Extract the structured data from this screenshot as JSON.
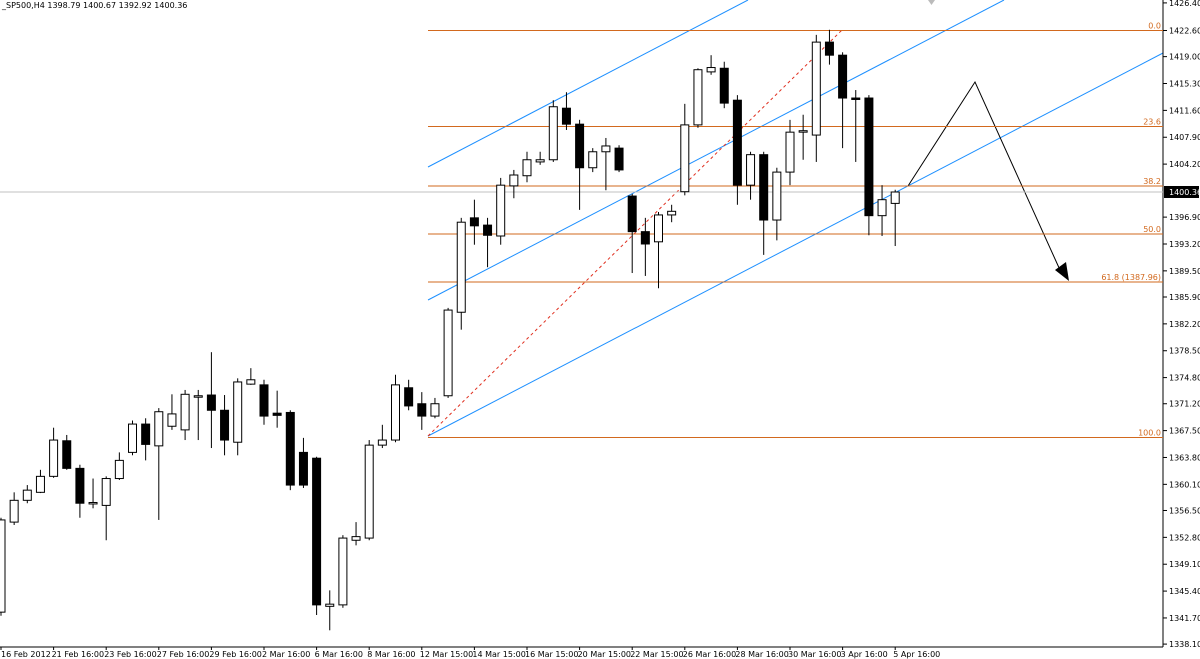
{
  "chart_data": {
    "type": "candlestick",
    "title": "_SP500,H4",
    "ohlc": [
      1398.79,
      1400.67,
      1392.92,
      1400.36
    ],
    "categories": [
      "16 Feb 2012",
      null,
      null,
      null,
      "21 Feb 16:00",
      null,
      null,
      null,
      "23 Feb 16:00",
      null,
      null,
      null,
      "27 Feb 16:00",
      null,
      null,
      null,
      "29 Feb 16:00",
      null,
      null,
      null,
      "2 Mar 16:00",
      null,
      null,
      null,
      "6 Mar 16:00",
      null,
      null,
      null,
      "8 Mar 16:00",
      null,
      null,
      null,
      "12 Mar 15:00",
      null,
      null,
      null,
      "14 Mar 15:00",
      null,
      null,
      null,
      "16 Mar 15:00",
      null,
      null,
      null,
      "20 Mar 15:00",
      null,
      null,
      null,
      "22 Mar 15:00",
      null,
      null,
      null,
      "26 Mar 16:00",
      null,
      null,
      null,
      "28 Mar 16:00",
      null,
      null,
      null,
      "30 Mar 16:00",
      null,
      null,
      null,
      "3 Apr 16:00",
      null,
      null,
      null,
      "5 Apr 16:00"
    ],
    "open": [
      1342.5,
      1354.9,
      1357.9,
      1359.0,
      1361.2,
      1366.1,
      1362.3,
      1357.4,
      1357.2,
      1360.9,
      1364.5,
      1368.4,
      1365.4,
      1368.1,
      1367.6,
      1372.1,
      1372.4,
      1370.3,
      1365.9,
      1373.9,
      1373.8,
      1369.9,
      1370.0,
      1364.5,
      1363.7,
      1343.3,
      1343.5,
      1352.4,
      1352.7,
      1365.5,
      1366.2,
      1373.4,
      1371.2,
      1369.5,
      1372.3,
      1383.8,
      1396.8,
      1395.8,
      1394.3,
      1401.2,
      1402.6,
      1404.5,
      1404.8,
      1411.9,
      1409.7,
      1403.7,
      1405.9,
      1406.4,
      1399.8,
      1394.9,
      1393.5,
      1397.2,
      1400.4,
      1409.6,
      1416.9,
      1417.4,
      1413.0,
      1401.3,
      1405.5,
      1396.5,
      1403.1,
      1408.6,
      1408.2,
      1421.0,
      1419.2,
      1413.3,
      1413.3,
      1397.1,
      1398.79
    ],
    "high": [
      1355.5,
      1359.0,
      1360.0,
      1362.1,
      1367.9,
      1366.9,
      1362.8,
      1360.9,
      1361.2,
      1364.5,
      1368.9,
      1369.2,
      1370.6,
      1372.5,
      1373.1,
      1373.1,
      1378.3,
      1372.4,
      1374.7,
      1376.1,
      1374.5,
      1373.0,
      1370.3,
      1366.5,
      1363.9,
      1345.5,
      1353.1,
      1354.9,
      1366.2,
      1368.3,
      1375.2,
      1374.5,
      1372.8,
      1372.0,
      1384.4,
      1396.8,
      1399.3,
      1396.8,
      1402.3,
      1403.4,
      1405.9,
      1405.9,
      1413.0,
      1414.1,
      1410.3,
      1406.4,
      1407.8,
      1406.8,
      1400.1,
      1396.8,
      1397.6,
      1398.6,
      1412.5,
      1417.4,
      1419.2,
      1418.3,
      1413.7,
      1405.9,
      1405.9,
      1403.7,
      1410.3,
      1411.0,
      1422.0,
      1422.7,
      1419.6,
      1414.4,
      1413.7,
      1401.3,
      1400.67
    ],
    "low": [
      1342.0,
      1354.5,
      1357.5,
      1358.9,
      1361.0,
      1362.1,
      1355.5,
      1356.8,
      1352.4,
      1360.7,
      1364.1,
      1363.4,
      1355.2,
      1367.6,
      1366.2,
      1366.2,
      1365.1,
      1364.1,
      1364.1,
      1373.8,
      1368.3,
      1367.9,
      1359.3,
      1359.6,
      1342.1,
      1340.0,
      1343.1,
      1351.7,
      1352.4,
      1365.1,
      1365.9,
      1370.3,
      1367.6,
      1369.2,
      1372.0,
      1381.4,
      1393.1,
      1390.0,
      1393.1,
      1399.5,
      1401.7,
      1404.1,
      1404.5,
      1408.9,
      1397.9,
      1403.1,
      1400.6,
      1403.1,
      1389.2,
      1388.8,
      1387.1,
      1396.2,
      1399.9,
      1409.2,
      1416.5,
      1411.9,
      1398.6,
      1399.3,
      1391.7,
      1393.7,
      1401.3,
      1404.8,
      1404.5,
      1417.9,
      1406.4,
      1404.5,
      1394.4,
      1394.3,
      1392.92
    ],
    "close": [
      1355.2,
      1357.9,
      1359.3,
      1361.2,
      1366.2,
      1362.3,
      1357.5,
      1357.6,
      1360.9,
      1363.4,
      1368.4,
      1365.6,
      1370.1,
      1369.8,
      1372.5,
      1372.3,
      1370.3,
      1366.2,
      1374.2,
      1374.5,
      1369.5,
      1369.6,
      1360.0,
      1360.0,
      1343.5,
      1343.6,
      1352.7,
      1352.9,
      1365.5,
      1366.2,
      1373.8,
      1370.9,
      1369.5,
      1371.2,
      1384.1,
      1396.2,
      1395.7,
      1394.4,
      1401.3,
      1402.7,
      1404.8,
      1404.8,
      1412.1,
      1409.7,
      1403.7,
      1405.9,
      1406.7,
      1403.4,
      1394.9,
      1393.2,
      1397.2,
      1397.7,
      1409.6,
      1417.2,
      1417.5,
      1412.6,
      1401.3,
      1405.5,
      1396.5,
      1403.1,
      1408.6,
      1408.8,
      1421.0,
      1419.2,
      1413.3,
      1413.1,
      1397.1,
      1399.3,
      1400.36
    ],
    "ylim": [
      1337.7,
      1426.8
    ],
    "yticks": [
      {
        "value": 1426.4,
        "label": "1426.40"
      },
      {
        "value": 1422.6,
        "label": "1422.60"
      },
      {
        "value": 1419,
        "label": "1419.00"
      },
      {
        "value": 1415.3,
        "label": "1415.30"
      },
      {
        "value": 1411.6,
        "label": "1411.60"
      },
      {
        "value": 1407.9,
        "label": "1407.90"
      },
      {
        "value": 1404.2,
        "label": "1404.20"
      },
      {
        "value": 1396.9,
        "label": "1396.90"
      },
      {
        "value": 1393.2,
        "label": "1393.20"
      },
      {
        "value": 1389.5,
        "label": "1389.50"
      },
      {
        "value": 1385.9,
        "label": "1385.90"
      },
      {
        "value": 1382.2,
        "label": "1382.20"
      },
      {
        "value": 1378.5,
        "label": "1378.50"
      },
      {
        "value": 1374.8,
        "label": "1374.80"
      },
      {
        "value": 1371.2,
        "label": "1371.20"
      },
      {
        "value": 1367.5,
        "label": "1367.50"
      },
      {
        "value": 1363.8,
        "label": "1363.80"
      },
      {
        "value": 1360.1,
        "label": "1360.10"
      },
      {
        "value": 1356.5,
        "label": "1356.50"
      },
      {
        "value": 1352.8,
        "label": "1352.80"
      },
      {
        "value": 1349.1,
        "label": "1349.10"
      },
      {
        "value": 1345.4,
        "label": "1345.40"
      },
      {
        "value": 1341.7,
        "label": "1341.70"
      },
      {
        "value": 1338.1,
        "label": "1338.10"
      }
    ],
    "fibonacci": {
      "high": 1422.6,
      "low": 1366.55,
      "color": "#d2691e",
      "levels": [
        {
          "value": 0,
          "label": "0.0"
        },
        {
          "value": 23.6,
          "label": "23.6"
        },
        {
          "value": 38.2,
          "label": "38.2"
        },
        {
          "value": 50,
          "label": "50.0"
        },
        {
          "value": 61.8,
          "label": "61.8 (1387.96)"
        },
        {
          "value": 100,
          "label": "100.0"
        }
      ]
    }
  }
}
